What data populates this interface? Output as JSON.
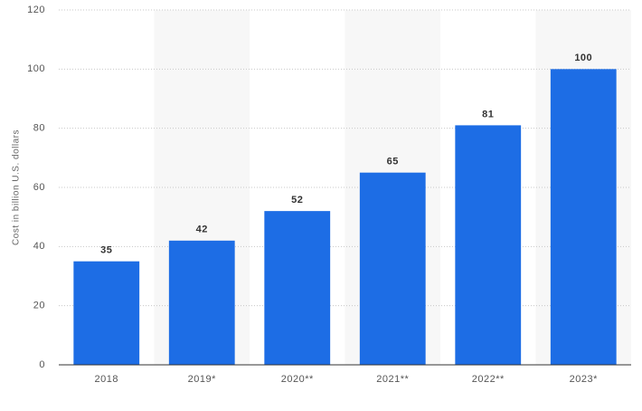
{
  "chart_data": {
    "type": "bar",
    "y_label": "Cost in billion U.S. dollars",
    "categories": [
      "2018",
      "2019*",
      "2020**",
      "2021**",
      "2022**",
      "2023*"
    ],
    "values": [
      35,
      42,
      52,
      65,
      81,
      100
    ],
    "color": "#1d6de5",
    "ylim": [
      0,
      120
    ],
    "yticks": [
      0,
      20,
      40,
      60,
      80,
      100,
      120
    ],
    "grid": true
  }
}
